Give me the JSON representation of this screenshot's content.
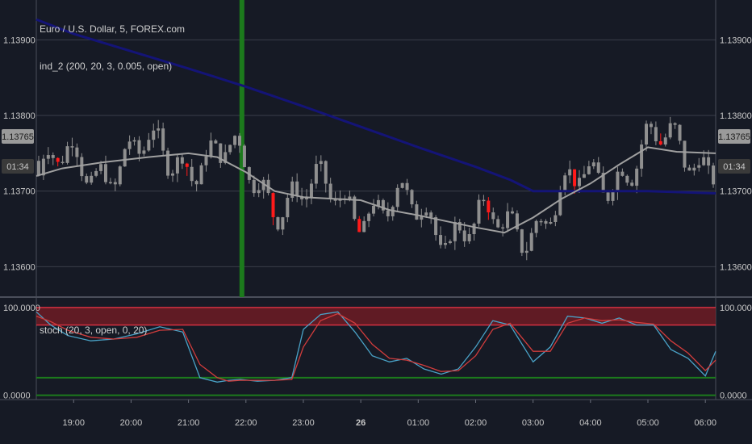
{
  "colors": {
    "background": "#161a25",
    "grid": "#3a3e4a",
    "candle_normal": "#8f8f8f",
    "candle_red": "#ff1a1a",
    "candle_green": "#5fa85f",
    "sma_long": "#141477",
    "sma_short": "#a0a0a0",
    "vertical_marker": "#1c7a1c",
    "stoch_k": "#4aa3c8",
    "stoch_d": "#d23c3c",
    "overbought_band": "#7a1c24",
    "oversold_line": "#1c7a1c",
    "badge": "#9a9a9a"
  },
  "legend": {
    "symbol": "Euro / U.S. Dollar, 5, FOREX.com",
    "indicator": "ind_2 (200, 20, 3, 0.005, open)",
    "stochastic": "stoch (20, 3, open, 0, 20)"
  },
  "badges": {
    "price": "1.13765",
    "timer": "01:34"
  },
  "chart_data": [
    {
      "type": "candlestick",
      "title": "Euro / U.S. Dollar, 5, FOREX.com",
      "y_ticks": [
        "1.13900",
        "1.13800",
        "1.13700",
        "1.13600"
      ],
      "y_tick_values": [
        1.139,
        1.138,
        1.137,
        1.136
      ],
      "ylim": [
        1.13562,
        1.13942
      ],
      "x_ticks": [
        "19:00",
        "20:00",
        "21:00",
        "22:00",
        "23:00",
        "26",
        "01:00",
        "02:00",
        "03:00",
        "04:00",
        "05:00",
        "06:00"
      ],
      "x_tick_bold": [
        false,
        false,
        false,
        false,
        false,
        true,
        false,
        false,
        false,
        false,
        false,
        false
      ],
      "time_range_hours": [
        18.35,
        30.18
      ],
      "last_price": 1.13765,
      "vertical_marker_time_hours": 21.93,
      "series": [
        {
          "name": "ind_2 (200, 20, 3, 0.005, open)",
          "kind": "line-long",
          "points": [
            [
              18.35,
              1.13927
            ],
            [
              19.0,
              1.13908
            ],
            [
              20.0,
              1.13885
            ],
            [
              21.0,
              1.13862
            ],
            [
              22.0,
              1.13838
            ],
            [
              23.0,
              1.13812
            ],
            [
              24.0,
              1.13785
            ],
            [
              25.0,
              1.13758
            ],
            [
              26.0,
              1.13732
            ],
            [
              26.6,
              1.13715
            ],
            [
              27.0,
              1.137
            ],
            [
              28.0,
              1.137
            ],
            [
              29.0,
              1.137
            ],
            [
              30.18,
              1.13697
            ]
          ]
        },
        {
          "name": "ind_2 (200, 20, 3, 0.005, open)",
          "kind": "line-short",
          "points": [
            [
              18.35,
              1.1372
            ],
            [
              18.8,
              1.1373
            ],
            [
              19.5,
              1.13738
            ],
            [
              20.3,
              1.13745
            ],
            [
              21.0,
              1.1375
            ],
            [
              21.5,
              1.13745
            ],
            [
              22.0,
              1.13725
            ],
            [
              22.5,
              1.137
            ],
            [
              23.0,
              1.13692
            ],
            [
              23.5,
              1.1369
            ],
            [
              24.0,
              1.13688
            ],
            [
              24.5,
              1.13675
            ],
            [
              25.0,
              1.13668
            ],
            [
              25.5,
              1.1366
            ],
            [
              26.0,
              1.13652
            ],
            [
              26.5,
              1.13645
            ],
            [
              27.0,
              1.13665
            ],
            [
              27.5,
              1.1369
            ],
            [
              28.0,
              1.1371
            ],
            [
              28.5,
              1.13735
            ],
            [
              29.0,
              1.13758
            ],
            [
              29.5,
              1.13752
            ],
            [
              30.18,
              1.1375
            ]
          ]
        }
      ]
    },
    {
      "type": "line",
      "title": "stoch (20, 3, open, 0, 20)",
      "y_ticks": [
        "100.0000",
        "0.0000"
      ],
      "y_tick_values": [
        100,
        0
      ],
      "ylim": [
        -5,
        110
      ],
      "overbought_band": [
        80,
        100
      ],
      "oversold_line": 20,
      "series": [
        {
          "name": "%K",
          "x": [
            18.35,
            18.6,
            18.9,
            19.3,
            19.7,
            20.1,
            20.5,
            20.9,
            21.2,
            21.5,
            21.7,
            21.9,
            22.2,
            22.5,
            22.8,
            23.0,
            23.3,
            23.6,
            23.9,
            24.2,
            24.5,
            24.8,
            25.1,
            25.4,
            25.7,
            26.0,
            26.3,
            26.6,
            27.0,
            27.3,
            27.6,
            27.9,
            28.2,
            28.5,
            28.8,
            29.1,
            29.4,
            29.7,
            30.0,
            30.18
          ],
          "values": [
            95,
            80,
            68,
            62,
            64,
            70,
            78,
            72,
            20,
            15,
            17,
            18,
            16,
            17,
            20,
            75,
            92,
            95,
            72,
            45,
            38,
            42,
            30,
            24,
            30,
            55,
            85,
            80,
            38,
            55,
            90,
            88,
            82,
            88,
            80,
            80,
            52,
            42,
            22,
            50
          ]
        },
        {
          "name": "%D",
          "x": [
            18.35,
            18.6,
            18.9,
            19.3,
            19.7,
            20.1,
            20.5,
            20.9,
            21.2,
            21.5,
            21.7,
            21.9,
            22.2,
            22.5,
            22.8,
            23.0,
            23.3,
            23.6,
            23.9,
            24.2,
            24.5,
            24.8,
            25.1,
            25.4,
            25.7,
            26.0,
            26.3,
            26.6,
            27.0,
            27.3,
            27.6,
            27.9,
            28.2,
            28.5,
            28.8,
            29.1,
            29.4,
            29.7,
            30.0,
            30.18
          ],
          "values": [
            90,
            84,
            74,
            66,
            64,
            66,
            74,
            75,
            35,
            20,
            16,
            17,
            17,
            17,
            18,
            55,
            85,
            93,
            82,
            58,
            42,
            40,
            34,
            27,
            28,
            45,
            75,
            82,
            50,
            50,
            82,
            88,
            85,
            86,
            83,
            81,
            62,
            48,
            28,
            40
          ]
        }
      ]
    }
  ]
}
